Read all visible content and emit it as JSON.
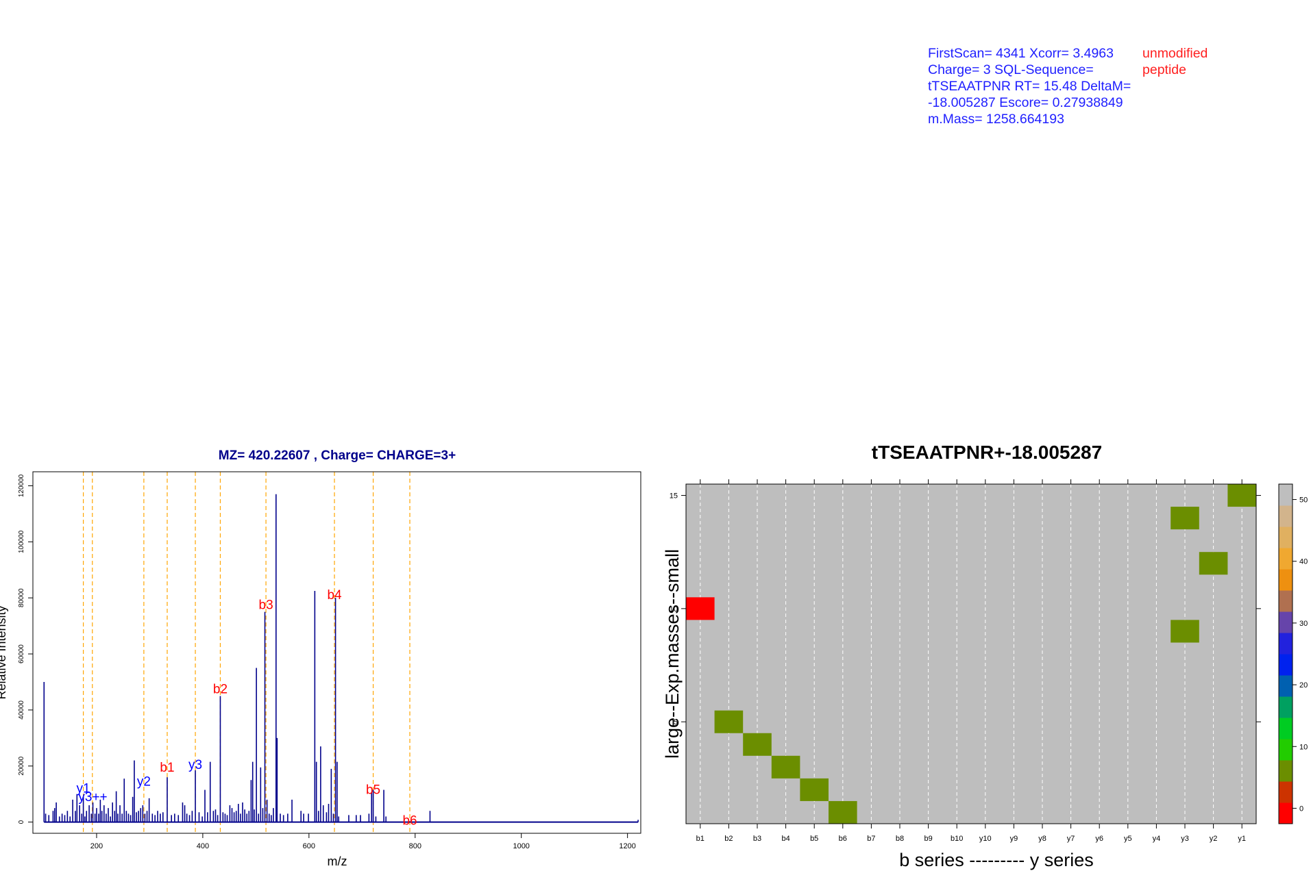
{
  "header": {
    "info_text": "FirstScan= 4341 Xcorr= 3.4963 Charge= 3 SQL-Sequence= tTSEAATPNR RT= 15.48 DeltaM= -18.005287 Escore= 0.27938849 m.Mass= 1258.664193",
    "status_text": "unmodified peptide",
    "colors": {
      "info": "#1f1fff",
      "status": "#ff1f1f"
    }
  },
  "chart_data": [
    {
      "type": "bar",
      "title": "MZ= 420.22607 , Charge= CHARGE=3+",
      "xlabel": "m/z",
      "ylabel": "Relative Intensity",
      "xlim": [
        80,
        1225
      ],
      "ylim": [
        -4000,
        125000
      ],
      "x_ticks": [
        200,
        400,
        600,
        800,
        1000,
        1200
      ],
      "y_ticks": [
        0,
        20000,
        40000,
        60000,
        80000,
        100000,
        120000
      ],
      "colors": {
        "peaks": "#00008b",
        "title": "#00008b",
        "annotation_b": "#ff0000",
        "annotation_y": "#0000ff",
        "guide": "#ffa500"
      },
      "peaks": [
        [
          101,
          50000
        ],
        [
          104,
          3000
        ],
        [
          110,
          2500
        ],
        [
          118,
          4000
        ],
        [
          121,
          5000
        ],
        [
          124,
          7000
        ],
        [
          130,
          2000
        ],
        [
          135,
          3000
        ],
        [
          140,
          2500
        ],
        [
          145,
          4000
        ],
        [
          150,
          2000
        ],
        [
          155,
          8000
        ],
        [
          160,
          4000
        ],
        [
          163,
          10000
        ],
        [
          168,
          6000
        ],
        [
          172,
          3000
        ],
        [
          175,
          9000
        ],
        [
          178,
          2000
        ],
        [
          181,
          4000
        ],
        [
          186,
          6000
        ],
        [
          190,
          3000
        ],
        [
          193,
          7000
        ],
        [
          197,
          3000
        ],
        [
          200,
          5000
        ],
        [
          204,
          3000
        ],
        [
          207,
          8000
        ],
        [
          210,
          4000
        ],
        [
          214,
          6000
        ],
        [
          218,
          3000
        ],
        [
          222,
          5000
        ],
        [
          226,
          2000
        ],
        [
          230,
          7000
        ],
        [
          234,
          4000
        ],
        [
          237,
          11000
        ],
        [
          240,
          3000
        ],
        [
          244,
          6000
        ],
        [
          248,
          3000
        ],
        [
          252,
          15500
        ],
        [
          256,
          4000
        ],
        [
          260,
          3000
        ],
        [
          264,
          2500
        ],
        [
          268,
          9000
        ],
        [
          271,
          22000
        ],
        [
          275,
          3500
        ],
        [
          279,
          4000
        ],
        [
          283,
          5000
        ],
        [
          287,
          6000
        ],
        [
          291,
          3000
        ],
        [
          295,
          4000
        ],
        [
          299,
          8500
        ],
        [
          305,
          3000
        ],
        [
          310,
          2500
        ],
        [
          315,
          4000
        ],
        [
          320,
          3000
        ],
        [
          325,
          3500
        ],
        [
          333,
          16000
        ],
        [
          341,
          2500
        ],
        [
          347,
          3000
        ],
        [
          354,
          2500
        ],
        [
          362,
          7000
        ],
        [
          366,
          6000
        ],
        [
          370,
          3000
        ],
        [
          375,
          2500
        ],
        [
          380,
          4000
        ],
        [
          386,
          18500
        ],
        [
          393,
          3500
        ],
        [
          399,
          2000
        ],
        [
          404,
          11500
        ],
        [
          409,
          3500
        ],
        [
          414,
          21500
        ],
        [
          420,
          4000
        ],
        [
          424,
          4500
        ],
        [
          428,
          2500
        ],
        [
          433,
          45000
        ],
        [
          438,
          3500
        ],
        [
          442,
          3000
        ],
        [
          446,
          2500
        ],
        [
          451,
          6000
        ],
        [
          455,
          5000
        ],
        [
          459,
          3500
        ],
        [
          463,
          4000
        ],
        [
          467,
          6500
        ],
        [
          471,
          3000
        ],
        [
          475,
          7000
        ],
        [
          479,
          4500
        ],
        [
          483,
          3000
        ],
        [
          487,
          4000
        ],
        [
          491,
          15000
        ],
        [
          494,
          21500
        ],
        [
          497,
          4500
        ],
        [
          501,
          55000
        ],
        [
          505,
          3000
        ],
        [
          509,
          19500
        ],
        [
          513,
          5000
        ],
        [
          517,
          75000
        ],
        [
          521,
          8000
        ],
        [
          525,
          3000
        ],
        [
          529,
          2500
        ],
        [
          533,
          5000
        ],
        [
          538,
          117000
        ],
        [
          540,
          30000
        ],
        [
          546,
          3000
        ],
        [
          552,
          2500
        ],
        [
          560,
          3000
        ],
        [
          568,
          8000
        ],
        [
          585,
          4000
        ],
        [
          590,
          3000
        ],
        [
          599,
          3000
        ],
        [
          611,
          82500
        ],
        [
          614,
          21500
        ],
        [
          618,
          4000
        ],
        [
          622,
          27000
        ],
        [
          627,
          6000
        ],
        [
          633,
          3500
        ],
        [
          637,
          6500
        ],
        [
          642,
          19000
        ],
        [
          646,
          3000
        ],
        [
          650,
          80000
        ],
        [
          653,
          21500
        ],
        [
          656,
          2000
        ],
        [
          675,
          2500
        ],
        [
          689,
          2500
        ],
        [
          697,
          2500
        ],
        [
          713,
          3000
        ],
        [
          718,
          10500
        ],
        [
          721,
          11500
        ],
        [
          726,
          2000
        ],
        [
          741,
          11500
        ],
        [
          745,
          2000
        ],
        [
          828,
          4000
        ],
        [
          1220,
          800
        ]
      ],
      "guide_lines_x": [
        175,
        192,
        289,
        333,
        386,
        433,
        519,
        648,
        721,
        790
      ],
      "annotations": [
        {
          "label": "y1",
          "series": "y",
          "x": 175,
          "y": 10500
        },
        {
          "label": "y3++",
          "series": "y",
          "x": 193,
          "y": 7500
        },
        {
          "label": "y2",
          "series": "y",
          "x": 289,
          "y": 13000
        },
        {
          "label": "b1",
          "series": "b",
          "x": 333,
          "y": 18000
        },
        {
          "label": "y3",
          "series": "y",
          "x": 386,
          "y": 19000
        },
        {
          "label": "b2",
          "series": "b",
          "x": 433,
          "y": 46000
        },
        {
          "label": "b3",
          "series": "b",
          "x": 519,
          "y": 76000
        },
        {
          "label": "b4",
          "series": "b",
          "x": 648,
          "y": 79500
        },
        {
          "label": "b5",
          "series": "b",
          "x": 721,
          "y": 10000
        },
        {
          "label": "b6",
          "series": "b",
          "x": 790,
          "y": -1000
        }
      ]
    },
    {
      "type": "heatmap",
      "title": "tTSEAATPNR+-18.005287",
      "xlabel": "b series --------- y series",
      "ylabel": "large--Exp.masses--small",
      "categories": [
        "b1",
        "b2",
        "b3",
        "b4",
        "b5",
        "b6",
        "b7",
        "b8",
        "b9",
        "b10",
        "y10",
        "y9",
        "y8",
        "y7",
        "y6",
        "y5",
        "y4",
        "y3",
        "y2",
        "y1"
      ],
      "ylim": [
        0.5,
        15.5
      ],
      "y_ticks": [
        5,
        10,
        15
      ],
      "background_value": 52,
      "cells": [
        {
          "x": "b1",
          "y": 10,
          "value": 0
        },
        {
          "x": "b2",
          "y": 5,
          "value": 5
        },
        {
          "x": "b3",
          "y": 4,
          "value": 5
        },
        {
          "x": "b4",
          "y": 3,
          "value": 5
        },
        {
          "x": "b5",
          "y": 2,
          "value": 5
        },
        {
          "x": "b6",
          "y": 1,
          "value": 5
        },
        {
          "x": "y3",
          "y": 9,
          "value": 5
        },
        {
          "x": "y3",
          "y": 14,
          "value": 5
        },
        {
          "x": "y2",
          "y": 12,
          "value": 5
        },
        {
          "x": "y1",
          "y": 15,
          "value": 5
        }
      ],
      "colorbar": {
        "ticks": [
          0,
          10,
          20,
          30,
          40,
          50
        ],
        "range": [
          -2.5,
          52.5
        ],
        "colors": [
          "#ff0000",
          "#cc3300",
          "#6b8e00",
          "#22cc00",
          "#00cc22",
          "#00a060",
          "#0060b0",
          "#0022ee",
          "#2222dd",
          "#6644aa",
          "#b07050",
          "#ee9010",
          "#f0a830",
          "#e0b060",
          "#d2b48c",
          "#bebebe"
        ]
      }
    }
  ]
}
